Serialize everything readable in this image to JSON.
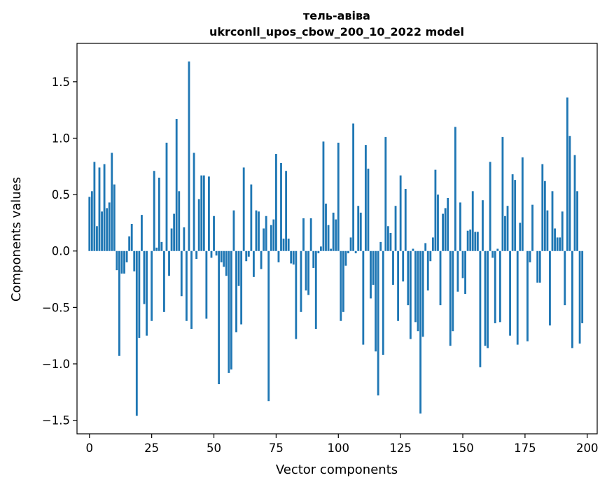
{
  "chart_data": {
    "type": "bar",
    "title": "тель-авіва",
    "subtitle": "ukrconll_upos_cbow_200_10_2022 model",
    "xlabel": "Vector components",
    "ylabel": "Components values",
    "xlim": [
      -5,
      204
    ],
    "ylim": [
      -1.62,
      1.84
    ],
    "xticks": [
      0,
      25,
      50,
      75,
      100,
      125,
      150,
      175,
      200
    ],
    "yticks": [
      -1.5,
      -1.0,
      -0.5,
      0.0,
      0.5,
      1.0,
      1.5
    ],
    "ytick_labels": [
      "−1.5",
      "−1.0",
      "−0.5",
      "0.0",
      "0.5",
      "1.0",
      "1.5"
    ],
    "bar_color": "#1f77b4",
    "values": [
      0.48,
      0.53,
      0.79,
      0.22,
      0.74,
      0.35,
      0.77,
      0.38,
      0.43,
      0.87,
      0.59,
      -0.17,
      -0.93,
      -0.2,
      -0.2,
      -0.1,
      0.13,
      0.24,
      -0.18,
      -1.46,
      -0.77,
      0.32,
      -0.47,
      -0.75,
      0.0,
      -0.62,
      0.71,
      0.03,
      0.65,
      0.08,
      -0.54,
      0.96,
      -0.22,
      0.2,
      0.33,
      1.17,
      0.53,
      -0.4,
      0.21,
      -0.62,
      1.68,
      -0.69,
      0.87,
      -0.07,
      0.46,
      0.67,
      0.67,
      -0.6,
      0.66,
      -0.06,
      0.31,
      -0.04,
      -1.18,
      -0.1,
      -0.14,
      -0.22,
      -1.08,
      -1.05,
      0.36,
      -0.72,
      -0.31,
      -0.65,
      0.74,
      -0.09,
      -0.05,
      0.59,
      -0.23,
      0.36,
      0.35,
      -0.16,
      0.2,
      0.31,
      -1.33,
      0.23,
      0.28,
      0.86,
      -0.1,
      0.78,
      0.11,
      0.71,
      0.11,
      -0.11,
      -0.12,
      -0.78,
      0.0,
      -0.54,
      0.29,
      -0.35,
      -0.39,
      0.29,
      -0.15,
      -0.69,
      -0.02,
      0.04,
      0.97,
      0.42,
      0.23,
      0.02,
      0.34,
      0.28,
      0.96,
      -0.62,
      -0.54,
      -0.13,
      -0.02,
      0.12,
      1.13,
      -0.02,
      0.4,
      0.34,
      -0.83,
      0.94,
      0.73,
      -0.42,
      -0.3,
      -0.89,
      -1.28,
      0.08,
      -0.92,
      1.01,
      0.22,
      0.16,
      -0.3,
      0.4,
      -0.62,
      0.67,
      -0.27,
      0.55,
      -0.48,
      -0.78,
      0.02,
      -0.63,
      -0.71,
      -1.44,
      -0.76,
      0.07,
      -0.35,
      -0.09,
      0.12,
      0.72,
      0.5,
      -0.48,
      0.33,
      0.38,
      0.47,
      -0.84,
      -0.71,
      1.1,
      -0.36,
      0.43,
      -0.24,
      -0.38,
      0.18,
      0.19,
      0.53,
      0.17,
      0.17,
      -1.03,
      0.45,
      -0.84,
      -0.86,
      0.79,
      -0.06,
      -0.64,
      0.02,
      -0.63,
      1.01,
      0.31,
      0.4,
      -0.75,
      0.68,
      0.63,
      -0.83,
      0.25,
      0.83,
      0.0,
      -0.8,
      -0.1,
      0.41,
      0.0,
      -0.28,
      -0.28,
      0.77,
      0.62,
      0.36,
      -0.66,
      0.53,
      0.2,
      0.12,
      0.12,
      0.35,
      -0.48,
      1.36,
      1.02,
      -0.86,
      0.85,
      0.53,
      -0.82,
      -0.64
    ]
  }
}
